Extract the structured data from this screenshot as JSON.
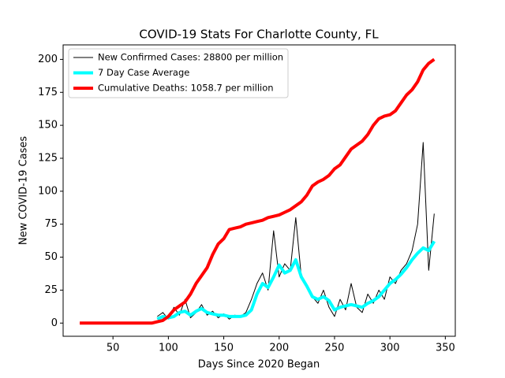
{
  "chart_data": {
    "type": "line",
    "title": "COVID-19 Stats For Charlotte County, FL",
    "x_label": "Days Since 2020 Began",
    "y_label": "New COVID-19 Cases",
    "x": [
      20,
      25,
      30,
      35,
      40,
      45,
      50,
      55,
      60,
      65,
      70,
      75,
      80,
      85,
      90,
      95,
      100,
      105,
      110,
      115,
      120,
      125,
      130,
      135,
      140,
      145,
      150,
      155,
      160,
      165,
      170,
      175,
      180,
      185,
      190,
      195,
      200,
      205,
      210,
      215,
      220,
      225,
      230,
      235,
      240,
      245,
      250,
      255,
      260,
      265,
      270,
      275,
      280,
      285,
      290,
      295,
      300,
      305,
      310,
      315,
      320,
      325,
      330,
      335,
      340
    ],
    "series": [
      {
        "name": "New Confirmed Cases: 28800 per million",
        "color": "#000000",
        "width": 1,
        "values": [
          null,
          null,
          null,
          null,
          null,
          null,
          null,
          null,
          null,
          null,
          null,
          null,
          null,
          null,
          5,
          8,
          3,
          12,
          6,
          18,
          4,
          8,
          14,
          6,
          9,
          4,
          7,
          3,
          6,
          5,
          8,
          18,
          30,
          38,
          25,
          70,
          35,
          45,
          40,
          80,
          35,
          28,
          20,
          15,
          25,
          12,
          5,
          18,
          10,
          30,
          12,
          8,
          22,
          15,
          25,
          18,
          35,
          30,
          40,
          45,
          55,
          75,
          137,
          40,
          83
        ]
      },
      {
        "name": "7 Day Case Average",
        "color": "#00ffff",
        "width": 4,
        "values": [
          null,
          null,
          null,
          null,
          null,
          null,
          null,
          null,
          null,
          null,
          null,
          null,
          null,
          null,
          3,
          5,
          4,
          5,
          8,
          9,
          6,
          9,
          11,
          8,
          7,
          6,
          6,
          5,
          5,
          5,
          6,
          10,
          22,
          30,
          27,
          35,
          44,
          38,
          40,
          48,
          35,
          28,
          20,
          18,
          20,
          17,
          10,
          12,
          13,
          14,
          13,
          12,
          15,
          17,
          20,
          25,
          30,
          33,
          37,
          42,
          48,
          53,
          57,
          55,
          62
        ]
      },
      {
        "name": "Cumulative Deaths: 1058.7 per million",
        "color": "#ff0000",
        "width": 4,
        "values": [
          0,
          0,
          0,
          0,
          0,
          0,
          0,
          0,
          0,
          0,
          0,
          0,
          0,
          0,
          1,
          2,
          5,
          10,
          13,
          16,
          22,
          30,
          36,
          42,
          52,
          60,
          64,
          71,
          72,
          73,
          75,
          76,
          77,
          78,
          80,
          81,
          82,
          84,
          86,
          89,
          92,
          97,
          104,
          107,
          109,
          112,
          117,
          120,
          126,
          132,
          135,
          138,
          143,
          150,
          155,
          157,
          158,
          161,
          167,
          173,
          177,
          183,
          192,
          197,
          200
        ]
      }
    ],
    "xlim": [
      5,
      359
    ],
    "ylim": [
      -10,
      211
    ],
    "xticks": [
      50,
      100,
      150,
      200,
      250,
      300,
      350
    ],
    "yticks": [
      0,
      25,
      50,
      75,
      100,
      125,
      150,
      175,
      200
    ],
    "legend": "upper left"
  }
}
